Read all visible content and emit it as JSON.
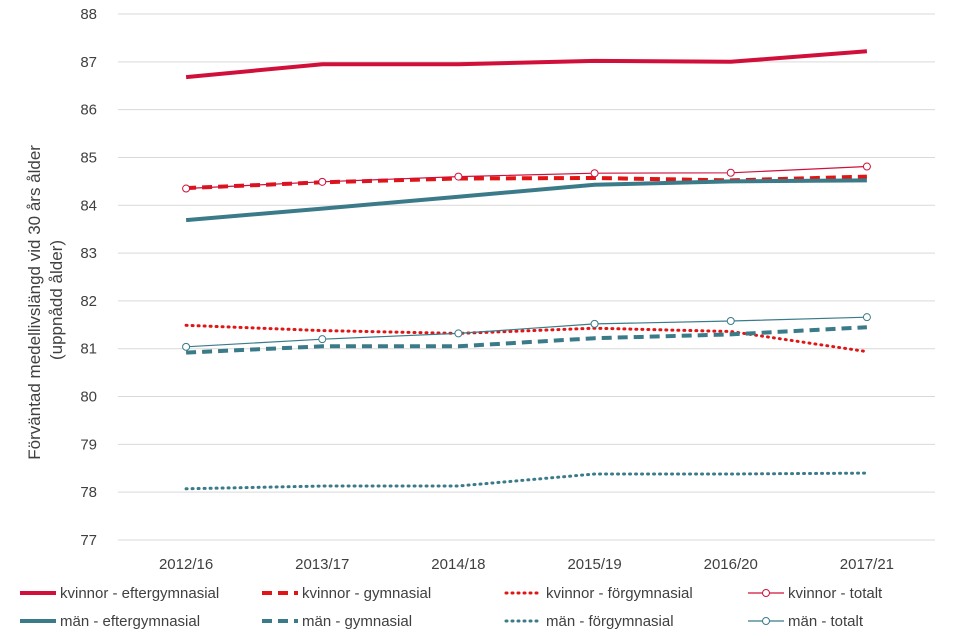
{
  "chart_data": {
    "type": "line",
    "title": "",
    "xlabel": "",
    "ylabel_lines": [
      "Förväntad medellivslängd vid 30 års ålder",
      "(uppnådd ålder)"
    ],
    "ylim": [
      77,
      88
    ],
    "yticks": [
      77,
      78,
      79,
      80,
      81,
      82,
      83,
      84,
      85,
      86,
      87,
      88
    ],
    "grid": "horizontal",
    "legend_position": "bottom",
    "categories": [
      "2012/16",
      "2013/17",
      "2014/18",
      "2015/19",
      "2016/20",
      "2017/21"
    ],
    "series": [
      {
        "name": "kvinnor - eftergymnasial",
        "color": "#d0103a",
        "style": "solid-thick",
        "markers": false,
        "values": [
          86.68,
          86.95,
          86.95,
          87.02,
          87.0,
          87.22
        ]
      },
      {
        "name": "kvinnor - gymnasial",
        "color": "#e01515",
        "style": "dashed",
        "markers": false,
        "values": [
          84.36,
          84.48,
          84.56,
          84.57,
          84.52,
          84.6
        ]
      },
      {
        "name": "kvinnor - förgymnasial",
        "color": "#e01515",
        "style": "dotted",
        "markers": false,
        "values": [
          81.49,
          81.38,
          81.32,
          81.43,
          81.36,
          80.94
        ]
      },
      {
        "name": "kvinnor - totalt",
        "color": "#d0103a",
        "style": "thin-markers",
        "markers": true,
        "values": [
          84.35,
          84.49,
          84.6,
          84.67,
          84.68,
          84.81
        ]
      },
      {
        "name": "män - eftergymnasial",
        "color": "#3b7b89",
        "style": "solid-thick",
        "markers": false,
        "values": [
          83.69,
          83.93,
          84.18,
          84.43,
          84.5,
          84.52
        ]
      },
      {
        "name": "män - gymnasial",
        "color": "#3b7b89",
        "style": "dashed",
        "markers": false,
        "values": [
          80.92,
          81.05,
          81.05,
          81.22,
          81.3,
          81.45
        ]
      },
      {
        "name": "män - förgymnasial",
        "color": "#3b7b89",
        "style": "dotted",
        "markers": false,
        "values": [
          78.07,
          78.13,
          78.13,
          78.38,
          78.38,
          78.4
        ]
      },
      {
        "name": "män - totalt",
        "color": "#3b7b89",
        "style": "thin-markers",
        "markers": true,
        "values": [
          81.04,
          81.2,
          81.32,
          81.52,
          81.58,
          81.66
        ]
      }
    ]
  }
}
